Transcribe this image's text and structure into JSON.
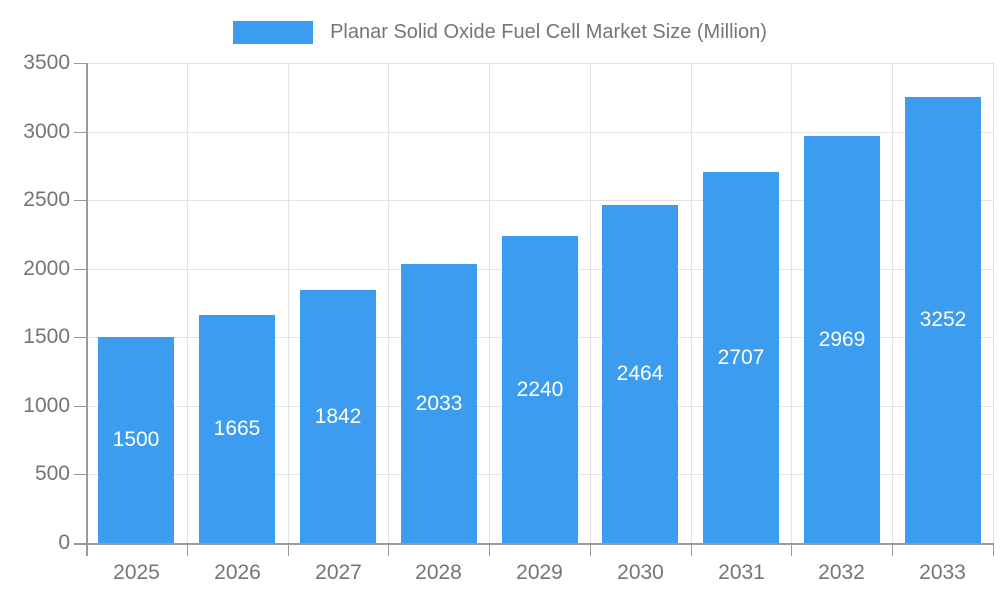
{
  "chart_data": {
    "type": "bar",
    "title": "Planar Solid Oxide Fuel Cell Market Size (Million)",
    "categories": [
      "2025",
      "2026",
      "2027",
      "2028",
      "2029",
      "2030",
      "2031",
      "2032",
      "2033"
    ],
    "values": [
      1500,
      1665,
      1842,
      2033,
      2240,
      2464,
      2707,
      2969,
      3252
    ],
    "xlabel": "",
    "ylabel": "",
    "ylim": [
      0,
      3500
    ],
    "ytick_step": 500,
    "ytick_labels": [
      "0",
      "500",
      "1000",
      "1500",
      "2000",
      "2500",
      "3000",
      "3500"
    ],
    "grid": true,
    "legend_position": "top",
    "value_label_position": "inside-center",
    "colors": {
      "bar": "#3b9cf0",
      "grid": "#e3e3e3",
      "axis": "#9a9a9a",
      "tick_text": "#757575",
      "value_text": "#ffffff"
    }
  }
}
